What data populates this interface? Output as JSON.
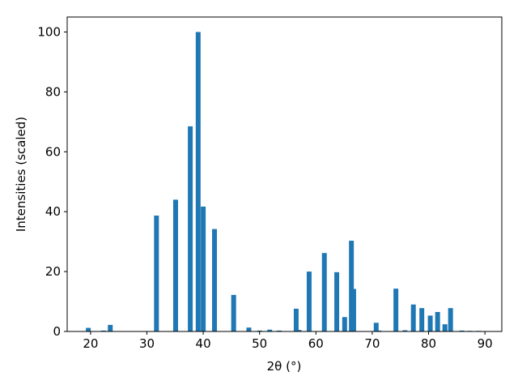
{
  "chart_data": {
    "type": "bar",
    "x_label": "2θ (°)",
    "y_label": "Intensities (scaled)",
    "x": [
      19.6,
      22.3,
      23.5,
      31.7,
      35.1,
      37.7,
      39.1,
      40.0,
      42.0,
      45.4,
      48.1,
      50.0,
      51.8,
      53.5,
      56.5,
      57.0,
      58.8,
      61.5,
      63.7,
      65.1,
      66.3,
      66.7,
      70.7,
      71.2,
      74.2,
      75.8,
      77.3,
      78.8,
      80.3,
      81.6,
      82.9,
      83.9,
      85.9,
      87.3,
      88.9
    ],
    "values": [
      1.2,
      0.3,
      2.2,
      38.7,
      44,
      68.5,
      100,
      41.7,
      34.2,
      12.2,
      1.3,
      0.3,
      0.6,
      0.3,
      7.6,
      0.5,
      20,
      26.2,
      19.8,
      4.8,
      30.3,
      14.2,
      2.9,
      0.3,
      14.3,
      0.4,
      9,
      7.8,
      5.3,
      6.5,
      2.4,
      7.8,
      0.3,
      0.2,
      0.2
    ],
    "color": "#1f77b4",
    "xlim": [
      15.85,
      93.0
    ],
    "ylim": [
      0,
      105
    ],
    "xticks": [
      20,
      30,
      40,
      50,
      60,
      70,
      80,
      90
    ],
    "yticks": [
      0,
      20,
      40,
      60,
      80,
      100
    ]
  }
}
